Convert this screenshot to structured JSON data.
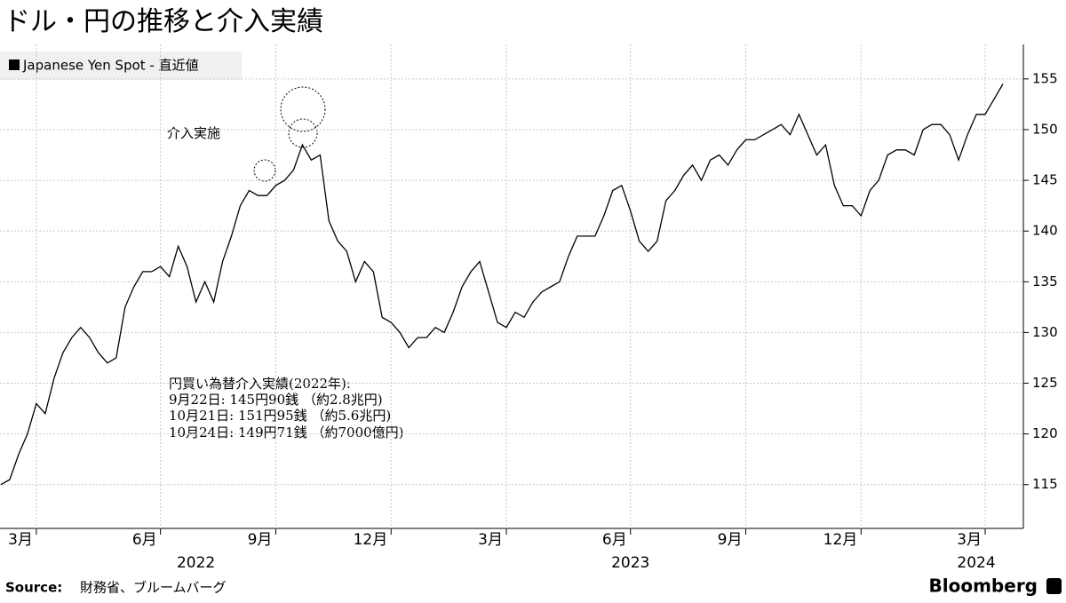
{
  "chart_data": {
    "type": "line",
    "title": "ドル・円の推移と介入実績",
    "categories": [
      null,
      null,
      null,
      null,
      "3月",
      null,
      null,
      null,
      null,
      null,
      null,
      null,
      null,
      null,
      null,
      null,
      null,
      null,
      "6月",
      null,
      null,
      null,
      null,
      null,
      null,
      null,
      null,
      null,
      null,
      null,
      null,
      "9月",
      null,
      null,
      null,
      null,
      null,
      null,
      null,
      null,
      null,
      null,
      null,
      null,
      "12月",
      null,
      null,
      null,
      null,
      null,
      null,
      null,
      null,
      null,
      null,
      null,
      null,
      "3月",
      null,
      null,
      null,
      null,
      null,
      null,
      null,
      null,
      null,
      null,
      null,
      null,
      null,
      "6月",
      null,
      null,
      null,
      null,
      null,
      null,
      null,
      null,
      null,
      null,
      null,
      null,
      "9月",
      null,
      null,
      null,
      null,
      null,
      null,
      null,
      null,
      null,
      null,
      null,
      null,
      "12月",
      null,
      null,
      null,
      null,
      null,
      null,
      null,
      null,
      null,
      null,
      null,
      null,
      null,
      "3月",
      null,
      null
    ],
    "year_labels": [
      null,
      null,
      null,
      null,
      null,
      null,
      null,
      null,
      null,
      null,
      null,
      null,
      null,
      null,
      null,
      null,
      null,
      null,
      null,
      null,
      null,
      null,
      "2022",
      null,
      null,
      null,
      null,
      null,
      null,
      null,
      null,
      null,
      null,
      null,
      null,
      null,
      null,
      null,
      null,
      null,
      null,
      null,
      null,
      null,
      null,
      null,
      null,
      null,
      null,
      null,
      null,
      null,
      null,
      null,
      null,
      null,
      null,
      null,
      null,
      null,
      null,
      null,
      null,
      null,
      null,
      null,
      null,
      null,
      null,
      null,
      null,
      "2023",
      null,
      null,
      null,
      null,
      null,
      null,
      null,
      null,
      null,
      null,
      null,
      null,
      null,
      null,
      null,
      null,
      null,
      null,
      null,
      null,
      null,
      null,
      null,
      null,
      null,
      null,
      null,
      null,
      null,
      null,
      null,
      null,
      null,
      null,
      null,
      null,
      null,
      null,
      "2024",
      null,
      null,
      null,
      null,
      null,
      null,
      null
    ],
    "series": [
      {
        "name": "Japanese Yen Spot - 直近値",
        "color": "#000000",
        "values": [
          115,
          115.5,
          118,
          120,
          123,
          122,
          125.5,
          128,
          129.5,
          130.5,
          129.5,
          128,
          127,
          127.5,
          132.5,
          134.5,
          136,
          136,
          136.5,
          135.5,
          138.5,
          136.5,
          133,
          135,
          133,
          137,
          139.5,
          142.5,
          144,
          143.5,
          143.5,
          144.5,
          145,
          146,
          148.5,
          147,
          147.5,
          141,
          139,
          138,
          135,
          137,
          136,
          131.5,
          131,
          130,
          128.5,
          129.5,
          129.5,
          130.5,
          130,
          132,
          134.5,
          136,
          137,
          134,
          131,
          130.5,
          132,
          131.5,
          133,
          134,
          134.5,
          135,
          137.5,
          139.5,
          139.5,
          139.5,
          141.5,
          144,
          144.5,
          142,
          139,
          138,
          139,
          143,
          144,
          145.5,
          146.5,
          145,
          147,
          147.5,
          146.5,
          148,
          149,
          149,
          149.5,
          150,
          150.5,
          149.5,
          151.5,
          149.5,
          147.5,
          148.5,
          144.5,
          142.5,
          142.5,
          141.5,
          144,
          145,
          147.5,
          148,
          148,
          147.5,
          150,
          150.5,
          150.5,
          149.5,
          147,
          149.5,
          151.5,
          151.5,
          153,
          154.5
        ]
      }
    ],
    "ylim": [
      110.6,
      158.4
    ],
    "yticks": [
      115,
      120,
      125,
      130,
      135,
      140,
      145,
      150,
      155
    ],
    "grid": true,
    "annotations": [
      "介入実施",
      "円買い為替介入実績(2022年):",
      "9月22日:  145円90銭 （約2.8兆円)",
      "10月21日:  151円95銭 （約5.6兆円)",
      "10月24日:  149円71銭 （約7000億円)"
    ],
    "source": {
      "label": "Source:",
      "text": "財務省、ブルームバーグ"
    },
    "brand": "Bloomberg"
  }
}
